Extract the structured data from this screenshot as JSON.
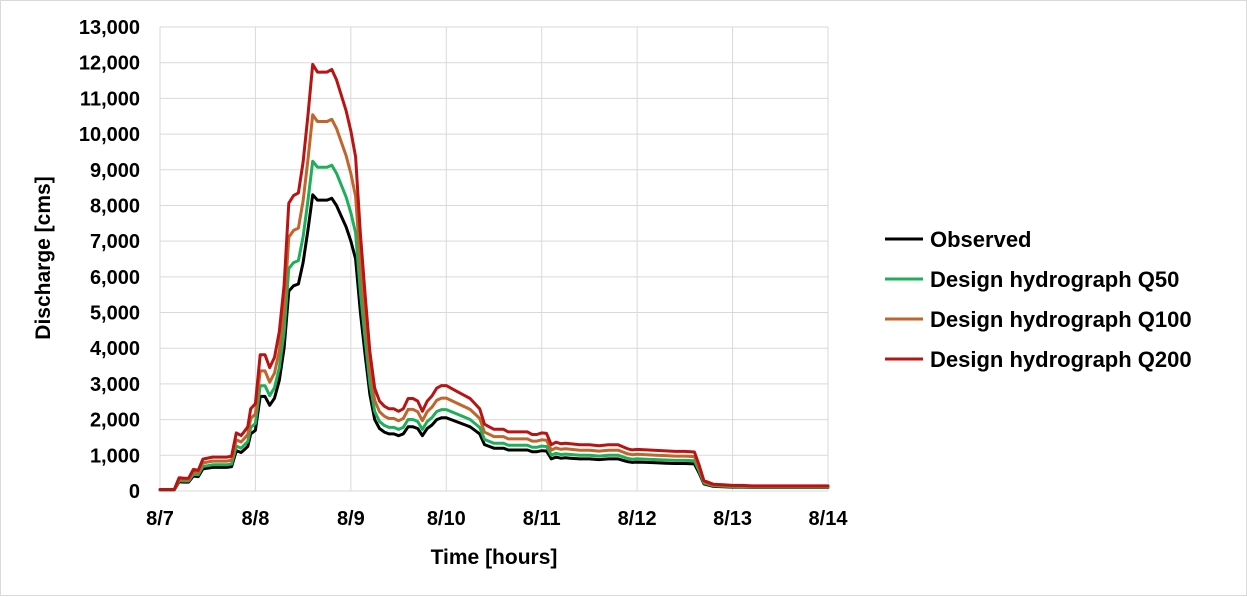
{
  "chart_data": {
    "type": "line",
    "title": "",
    "xlabel": "Time [hours]",
    "ylabel": "Discharge [cms]",
    "xlim": [
      0,
      7
    ],
    "ylim": [
      0,
      13000
    ],
    "xticks": [
      0,
      1,
      2,
      3,
      4,
      5,
      6,
      7
    ],
    "xtick_labels": [
      "8/7",
      "8/8",
      "8/9",
      "8/10",
      "8/11",
      "8/12",
      "8/13",
      "8/14"
    ],
    "yticks": [
      0,
      1000,
      2000,
      3000,
      4000,
      5000,
      6000,
      7000,
      8000,
      9000,
      10000,
      11000,
      12000,
      13000
    ],
    "ytick_labels": [
      "0",
      "1,000",
      "2,000",
      "3,000",
      "4,000",
      "5,000",
      "6,000",
      "7,000",
      "8,000",
      "9,000",
      "10,000",
      "11,000",
      "12,000",
      "13,000"
    ],
    "grid": true,
    "legend_position": "right",
    "x": [
      0,
      0.15,
      0.2,
      0.25,
      0.3,
      0.35,
      0.4,
      0.45,
      0.5,
      0.55,
      0.6,
      0.65,
      0.7,
      0.75,
      0.8,
      0.85,
      0.88,
      0.92,
      0.95,
      1.0,
      1.05,
      1.1,
      1.15,
      1.2,
      1.25,
      1.3,
      1.35,
      1.4,
      1.45,
      1.5,
      1.55,
      1.6,
      1.65,
      1.7,
      1.75,
      1.8,
      1.85,
      1.9,
      1.95,
      2.0,
      2.05,
      2.1,
      2.15,
      2.2,
      2.25,
      2.3,
      2.35,
      2.4,
      2.45,
      2.5,
      2.55,
      2.6,
      2.65,
      2.7,
      2.75,
      2.8,
      2.85,
      2.9,
      2.95,
      3.0,
      3.1,
      3.2,
      3.25,
      3.3,
      3.35,
      3.4,
      3.45,
      3.5,
      3.55,
      3.6,
      3.65,
      3.7,
      3.75,
      3.8,
      3.85,
      3.9,
      3.95,
      4.0,
      4.05,
      4.1,
      4.15,
      4.2,
      4.25,
      4.3,
      4.4,
      4.5,
      4.6,
      4.7,
      4.8,
      4.85,
      4.9,
      4.95,
      5.0,
      5.1,
      5.2,
      5.3,
      5.4,
      5.5,
      5.6,
      5.65,
      5.7,
      5.8,
      5.9,
      6.0,
      6.1,
      6.2,
      6.3,
      6.4,
      6.45,
      6.5,
      6.55,
      6.6,
      6.7,
      6.8,
      6.9,
      7.0
    ],
    "series": [
      {
        "name": "Observed",
        "color": "#000000",
        "values": [
          30,
          30,
          260,
          250,
          250,
          420,
          400,
          620,
          640,
          660,
          660,
          660,
          660,
          680,
          1130,
          1080,
          1150,
          1250,
          1600,
          1700,
          2650,
          2650,
          2400,
          2600,
          3100,
          4000,
          5600,
          5750,
          5800,
          6400,
          7300,
          8300,
          8150,
          8150,
          8150,
          8200,
          8000,
          7700,
          7400,
          7000,
          6500,
          5000,
          3800,
          2700,
          2000,
          1750,
          1650,
          1600,
          1600,
          1550,
          1600,
          1800,
          1800,
          1750,
          1550,
          1750,
          1850,
          2000,
          2050,
          2050,
          1950,
          1850,
          1800,
          1700,
          1600,
          1300,
          1250,
          1200,
          1200,
          1200,
          1150,
          1150,
          1150,
          1150,
          1150,
          1100,
          1100,
          1130,
          1120,
          900,
          950,
          920,
          930,
          920,
          900,
          900,
          880,
          900,
          900,
          860,
          820,
          800,
          810,
          800,
          790,
          780,
          770,
          770,
          760,
          500,
          200,
          130,
          120,
          110,
          110,
          100,
          100,
          100,
          100,
          100,
          100,
          100,
          100,
          100,
          100,
          100
        ]
      },
      {
        "name": "Design hydrograph Q50",
        "color": "#1fae5b",
        "values": [
          33,
          33,
          290,
          280,
          280,
          470,
          450,
          690,
          710,
          735,
          735,
          735,
          735,
          757,
          1258,
          1202,
          1280,
          1391,
          1780,
          1892,
          2949,
          2949,
          2671,
          2894,
          3450,
          4452,
          6232,
          6399,
          6455,
          7123,
          8124,
          9240,
          9071,
          9071,
          9071,
          9127,
          8904,
          8570,
          8236,
          7791,
          7235,
          5565,
          4229,
          3005,
          2226,
          1948,
          1837,
          1781,
          1781,
          1725,
          1781,
          2003,
          2003,
          1948,
          1725,
          1948,
          2059,
          2226,
          2282,
          2282,
          2170,
          2059,
          2003,
          1892,
          1781,
          1447,
          1391,
          1336,
          1336,
          1336,
          1280,
          1280,
          1280,
          1280,
          1280,
          1224,
          1224,
          1258,
          1247,
          1002,
          1057,
          1024,
          1035,
          1024,
          1002,
          1002,
          979,
          1002,
          1002,
          957,
          913,
          890,
          901,
          890,
          879,
          868,
          857,
          857,
          846,
          557,
          223,
          145,
          134,
          122,
          122,
          111,
          111,
          111,
          111,
          111,
          111,
          111,
          111,
          111,
          111,
          111
        ]
      },
      {
        "name": "Design hydrograph Q100",
        "color": "#c0652b",
        "values": [
          38,
          38,
          330,
          318,
          318,
          534,
          508,
          787,
          813,
          838,
          838,
          838,
          838,
          864,
          1435,
          1372,
          1460,
          1588,
          2032,
          2159,
          3366,
          3366,
          3048,
          3302,
          3937,
          5080,
          7112,
          7302,
          7366,
          8128,
          9271,
          10541,
          10351,
          10351,
          10351,
          10414,
          10160,
          9779,
          9398,
          8890,
          8255,
          6350,
          4826,
          3429,
          2540,
          2223,
          2096,
          2032,
          2032,
          1969,
          2032,
          2286,
          2286,
          2223,
          1969,
          2223,
          2350,
          2540,
          2604,
          2604,
          2477,
          2350,
          2286,
          2159,
          2032,
          1651,
          1588,
          1524,
          1524,
          1524,
          1461,
          1461,
          1461,
          1461,
          1461,
          1397,
          1397,
          1435,
          1422,
          1143,
          1207,
          1168,
          1181,
          1168,
          1143,
          1143,
          1118,
          1143,
          1143,
          1092,
          1041,
          1016,
          1029,
          1016,
          1003,
          991,
          978,
          978,
          965,
          635,
          254,
          165,
          152,
          140,
          140,
          127,
          127,
          127,
          127,
          127,
          127,
          127,
          127,
          127,
          127,
          127
        ]
      },
      {
        "name": "Design hydrograph Q200",
        "color": "#b81414",
        "values": [
          43,
          43,
          374,
          360,
          360,
          605,
          576,
          893,
          922,
          950,
          950,
          950,
          950,
          979,
          1627,
          1555,
          1656,
          1800,
          2304,
          2448,
          3816,
          3816,
          3456,
          3744,
          4464,
          5760,
          8064,
          8280,
          8352,
          9216,
          10512,
          11952,
          11736,
          11736,
          11736,
          11808,
          11520,
          11088,
          10656,
          10080,
          9360,
          7200,
          5472,
          3888,
          2880,
          2520,
          2376,
          2304,
          2304,
          2232,
          2304,
          2592,
          2592,
          2520,
          2232,
          2520,
          2664,
          2880,
          2952,
          2952,
          2808,
          2664,
          2592,
          2448,
          2304,
          1872,
          1800,
          1728,
          1728,
          1728,
          1656,
          1656,
          1656,
          1656,
          1656,
          1584,
          1584,
          1627,
          1613,
          1296,
          1368,
          1325,
          1339,
          1325,
          1296,
          1296,
          1267,
          1296,
          1296,
          1238,
          1181,
          1152,
          1166,
          1152,
          1138,
          1123,
          1109,
          1109,
          1094,
          720,
          288,
          187,
          173,
          158,
          158,
          144,
          144,
          144,
          144,
          144,
          144,
          144,
          144,
          144,
          144,
          144
        ]
      }
    ]
  }
}
